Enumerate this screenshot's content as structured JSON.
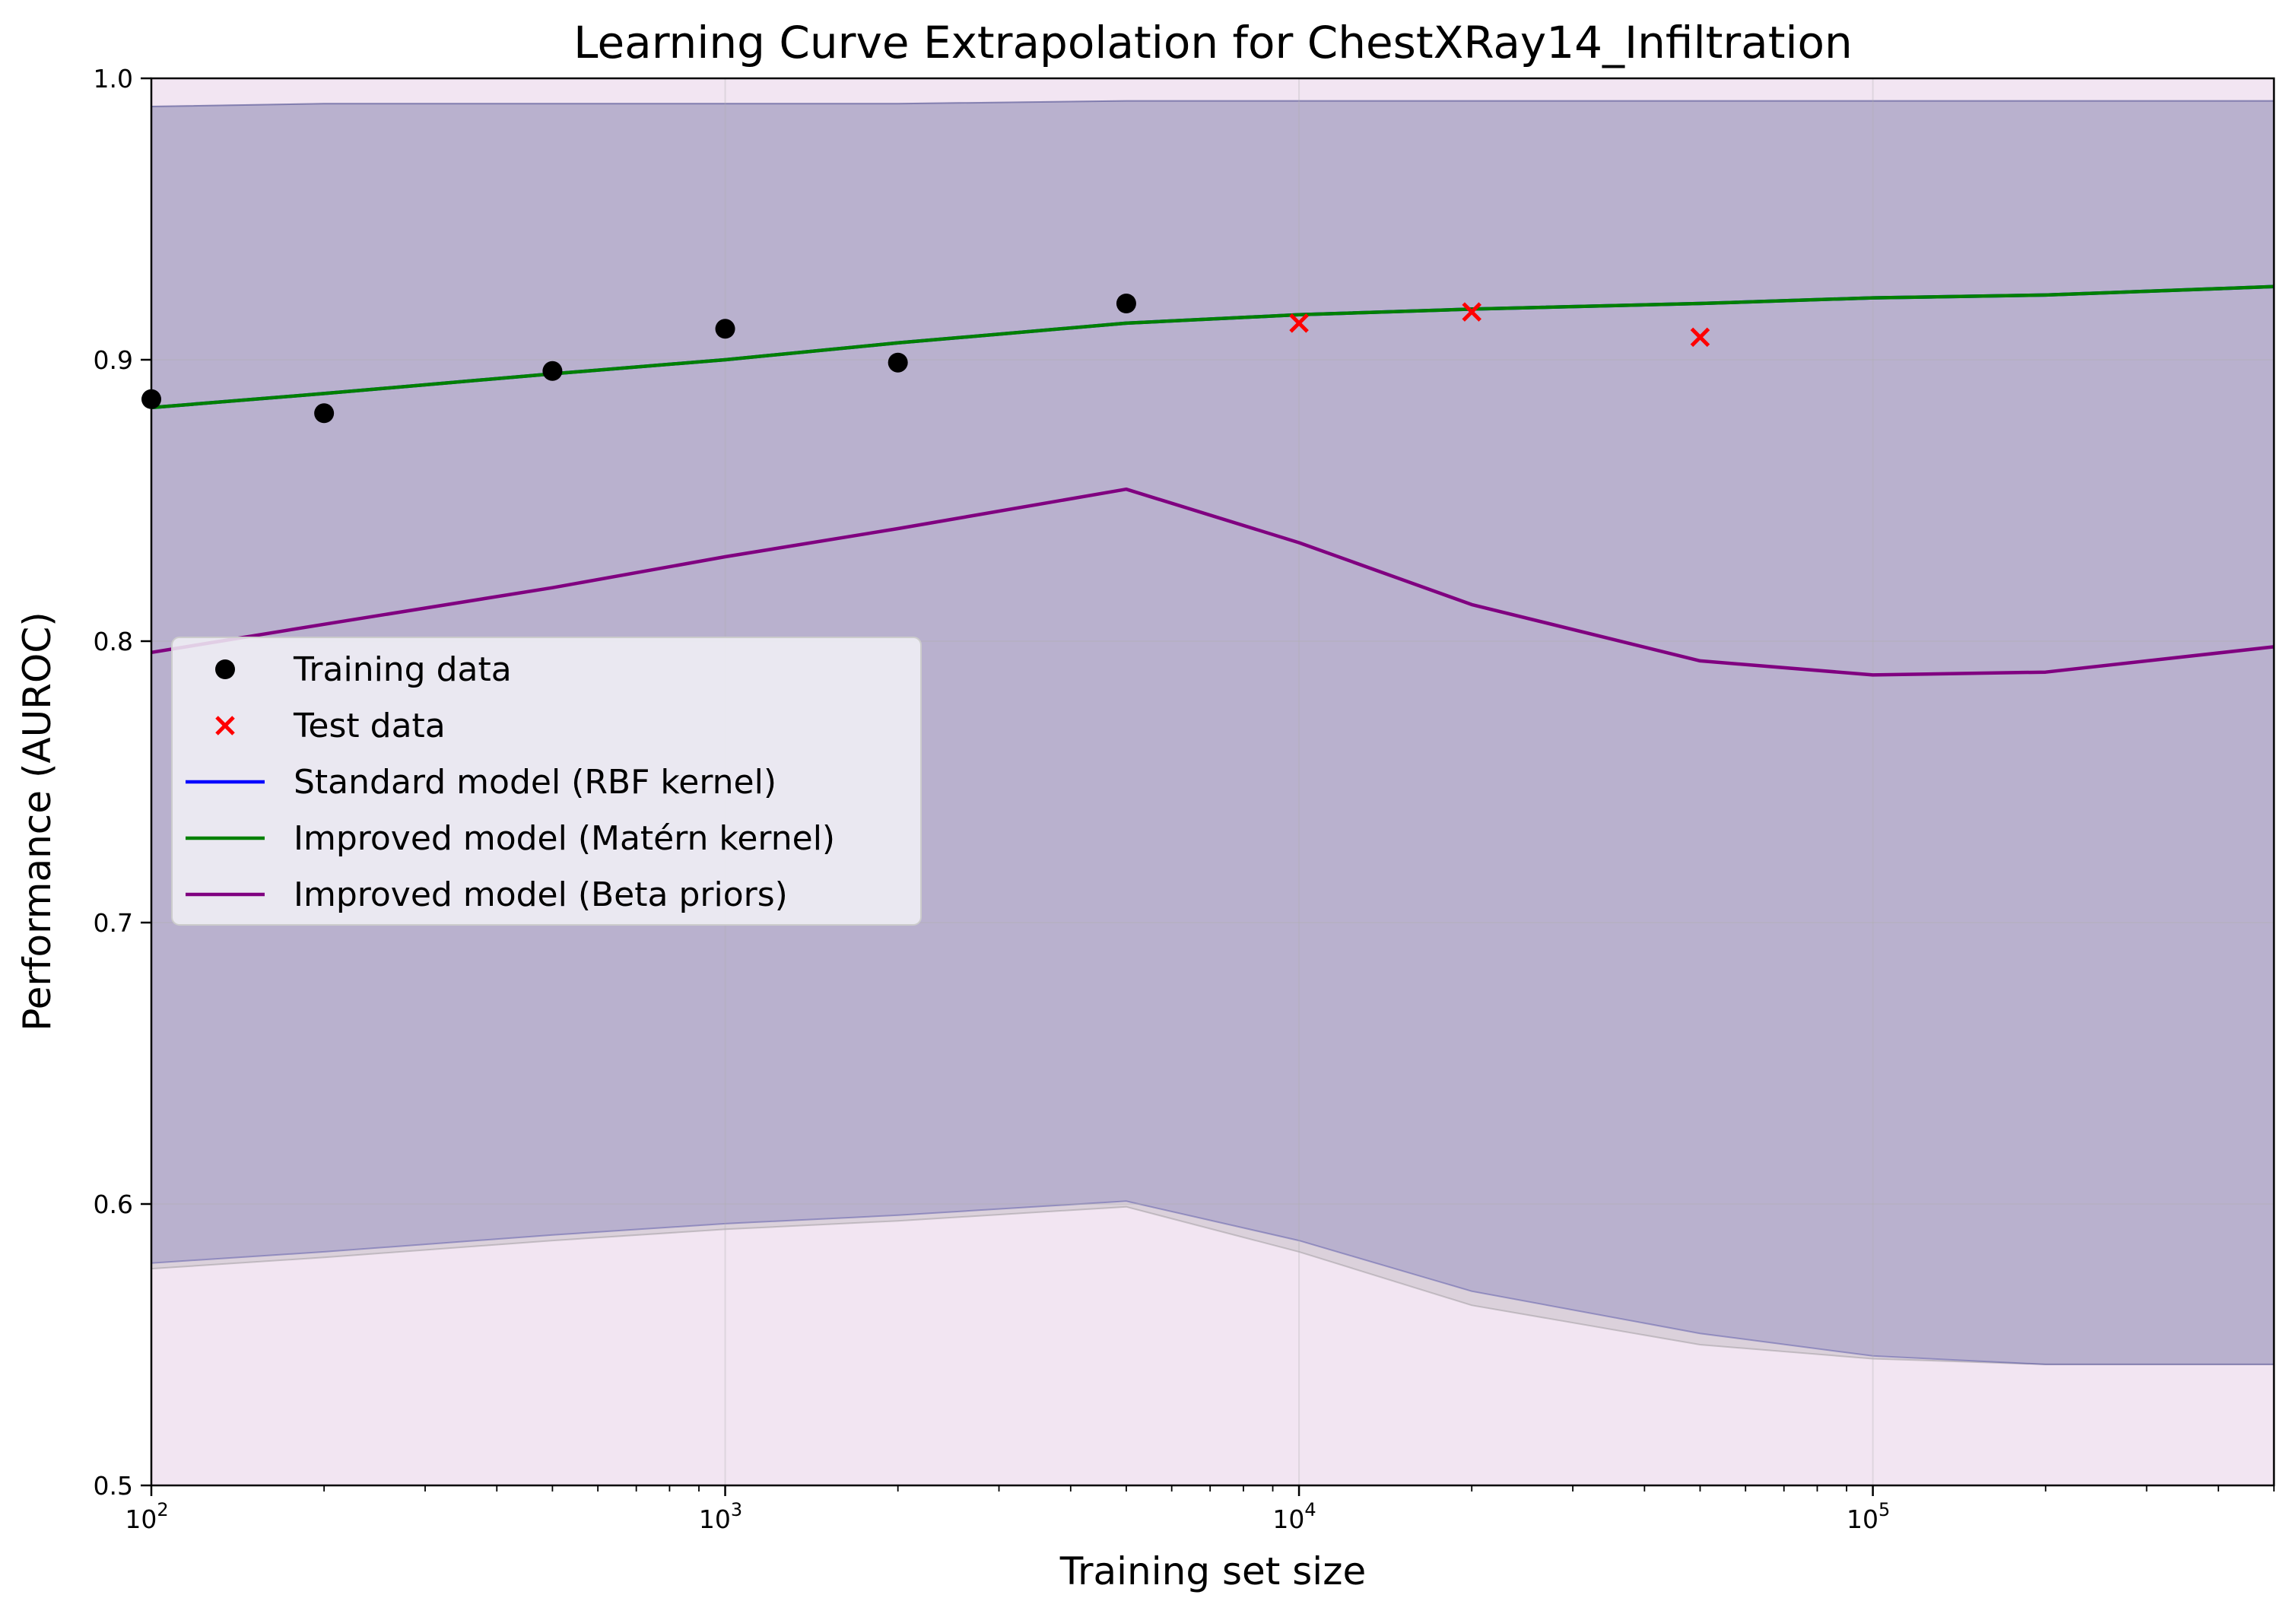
{
  "chart_data": {
    "type": "line",
    "title": "Learning Curve Extrapolation for ChestXRay14_Infiltration",
    "xlabel": "Training set size",
    "ylabel": "Performance (AUROC)",
    "x_scale": "log",
    "xlim": [
      100,
      500000
    ],
    "ylim": [
      0.5,
      1.0
    ],
    "x_ticks": [
      {
        "value": 100,
        "base": "10",
        "exp": "2"
      },
      {
        "value": 1000,
        "base": "10",
        "exp": "3"
      },
      {
        "value": 10000,
        "base": "10",
        "exp": "4"
      },
      {
        "value": 100000,
        "base": "10",
        "exp": "5"
      }
    ],
    "y_ticks": [
      {
        "value": 0.5,
        "label": "0.5"
      },
      {
        "value": 0.6,
        "label": "0.6"
      },
      {
        "value": 0.7,
        "label": "0.7"
      },
      {
        "value": 0.8,
        "label": "0.8"
      },
      {
        "value": 0.9,
        "label": "0.9"
      },
      {
        "value": 1.0,
        "label": "1.0"
      }
    ],
    "grid": true,
    "legend_position": "center-left",
    "series": [
      {
        "name": "Training data",
        "kind": "scatter",
        "marker": "circle",
        "color": "#000000",
        "x": [
          100,
          200,
          500,
          1000,
          2000,
          5000
        ],
        "y": [
          0.886,
          0.881,
          0.896,
          0.911,
          0.899,
          0.92
        ]
      },
      {
        "name": "Test data",
        "kind": "scatter",
        "marker": "x",
        "color": "#ff0000",
        "x": [
          10000,
          20000,
          50000
        ],
        "y": [
          0.913,
          0.917,
          0.908
        ]
      },
      {
        "name": "Standard model (RBF kernel)",
        "kind": "line",
        "color": "#0000ff",
        "x": [
          100,
          200,
          500,
          1000,
          2000,
          5000,
          10000,
          20000,
          50000,
          100000,
          200000,
          500000
        ],
        "y": [
          0.883,
          0.888,
          0.895,
          0.9,
          0.906,
          0.913,
          0.916,
          0.918,
          0.92,
          0.922,
          0.923,
          0.926
        ]
      },
      {
        "name": "Improved model (Matérn kernel)",
        "kind": "line",
        "color": "#008000",
        "x": [
          100,
          200,
          500,
          1000,
          2000,
          5000,
          10000,
          20000,
          50000,
          100000,
          200000,
          500000
        ],
        "y": [
          0.883,
          0.888,
          0.895,
          0.9,
          0.906,
          0.913,
          0.916,
          0.918,
          0.92,
          0.922,
          0.923,
          0.926
        ]
      },
      {
        "name": "Improved model (Beta priors)",
        "kind": "line",
        "color": "#800080",
        "x": [
          100,
          200,
          500,
          1000,
          2000,
          5000,
          10000,
          20000,
          50000,
          100000,
          200000,
          500000
        ],
        "y": [
          0.796,
          0.806,
          0.819,
          0.83,
          0.84,
          0.854,
          0.835,
          0.813,
          0.793,
          0.788,
          0.789,
          0.798
        ]
      }
    ],
    "bands": [
      {
        "for_series": "Improved model (Beta priors)",
        "color": "#800080",
        "opacity": 0.1,
        "x": [
          100,
          500000
        ],
        "lower": [
          0.5,
          0.5
        ],
        "upper": [
          1.0,
          1.0
        ]
      },
      {
        "for_series": "Improved model (Matérn kernel)",
        "color": "#808080",
        "opacity": 0.2,
        "x": [
          100,
          200,
          500,
          1000,
          2000,
          5000,
          10000,
          20000,
          50000,
          100000,
          200000,
          500000
        ],
        "lower": [
          0.577,
          0.581,
          0.587,
          0.591,
          0.594,
          0.599,
          0.583,
          0.564,
          0.55,
          0.545,
          0.543,
          0.543
        ],
        "upper": [
          0.99,
          0.991,
          0.991,
          0.991,
          0.991,
          0.992,
          0.992,
          0.992,
          0.992,
          0.992,
          0.992,
          0.992
        ]
      },
      {
        "for_series": "Standard model (RBF kernel)",
        "color": "#4040a0",
        "opacity": 0.22,
        "x": [
          100,
          200,
          500,
          1000,
          2000,
          5000,
          10000,
          20000,
          50000,
          100000,
          200000,
          500000
        ],
        "lower": [
          0.579,
          0.583,
          0.589,
          0.593,
          0.596,
          0.601,
          0.587,
          0.569,
          0.554,
          0.546,
          0.543,
          0.543
        ],
        "upper": [
          0.99,
          0.991,
          0.991,
          0.991,
          0.991,
          0.992,
          0.992,
          0.992,
          0.992,
          0.992,
          0.992,
          0.992
        ]
      }
    ]
  }
}
